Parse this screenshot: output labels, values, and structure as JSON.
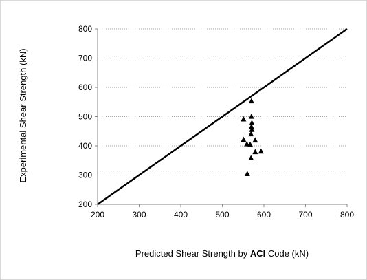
{
  "chart_data": {
    "type": "scatter",
    "title": "",
    "xlabel": {
      "prefix": "Predicted Shear Strength by ",
      "bold": "ACI",
      "suffix": " Code (kN)"
    },
    "ylabel": "Experimental Shear Strength (kN)",
    "xlim": [
      200,
      800
    ],
    "ylim": [
      200,
      800
    ],
    "x_ticks": [
      "200",
      "300",
      "400",
      "500",
      "600",
      "700",
      "800"
    ],
    "y_ticks": [
      "200",
      "300",
      "400",
      "500",
      "600",
      "700",
      "800"
    ],
    "grid": "horizontal dotted",
    "legend": "none",
    "reference_line": {
      "name": "",
      "points": [
        [
          200,
          200
        ],
        [
          800,
          800
        ]
      ],
      "color": "#000000"
    },
    "marker": "triangle",
    "marker_color": "#000000",
    "points": [
      {
        "x": 570,
        "y": 553
      },
      {
        "x": 570,
        "y": 500
      },
      {
        "x": 551,
        "y": 491
      },
      {
        "x": 571,
        "y": 478
      },
      {
        "x": 570,
        "y": 465
      },
      {
        "x": 571,
        "y": 455
      },
      {
        "x": 569,
        "y": 440
      },
      {
        "x": 551,
        "y": 421
      },
      {
        "x": 579,
        "y": 419
      },
      {
        "x": 559,
        "y": 406
      },
      {
        "x": 567,
        "y": 404
      },
      {
        "x": 579,
        "y": 379
      },
      {
        "x": 593,
        "y": 381
      },
      {
        "x": 569,
        "y": 358
      },
      {
        "x": 560,
        "y": 304
      }
    ]
  }
}
